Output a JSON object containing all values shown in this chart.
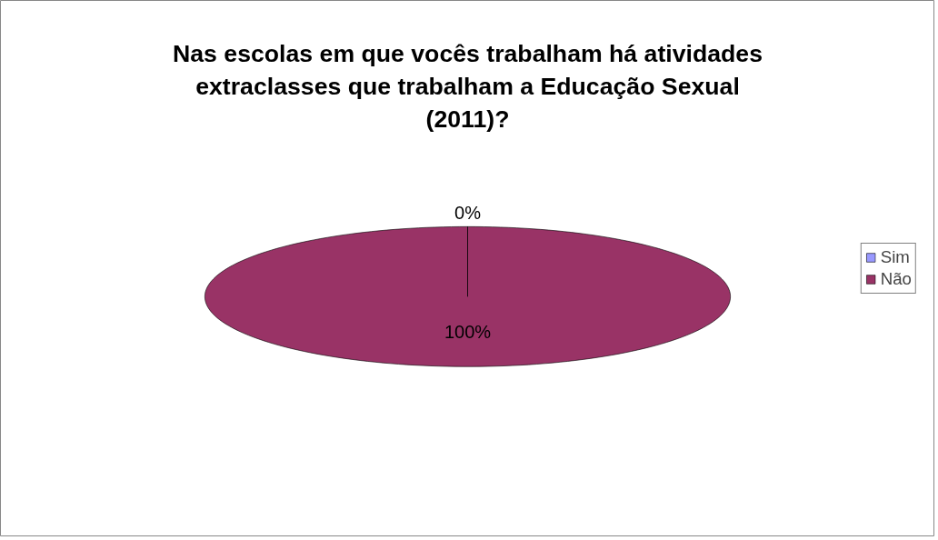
{
  "chart_data": {
    "type": "pie",
    "title": "Nas escolas em que vocês trabalham há atividades extraclasses que trabalham a Educação Sexual (2011)?",
    "categories": [
      "Sim",
      "Não"
    ],
    "values": [
      0,
      100
    ],
    "value_labels": [
      "0%",
      "100%"
    ],
    "colors": [
      "#9999ff",
      "#993366"
    ],
    "legend": "right"
  }
}
